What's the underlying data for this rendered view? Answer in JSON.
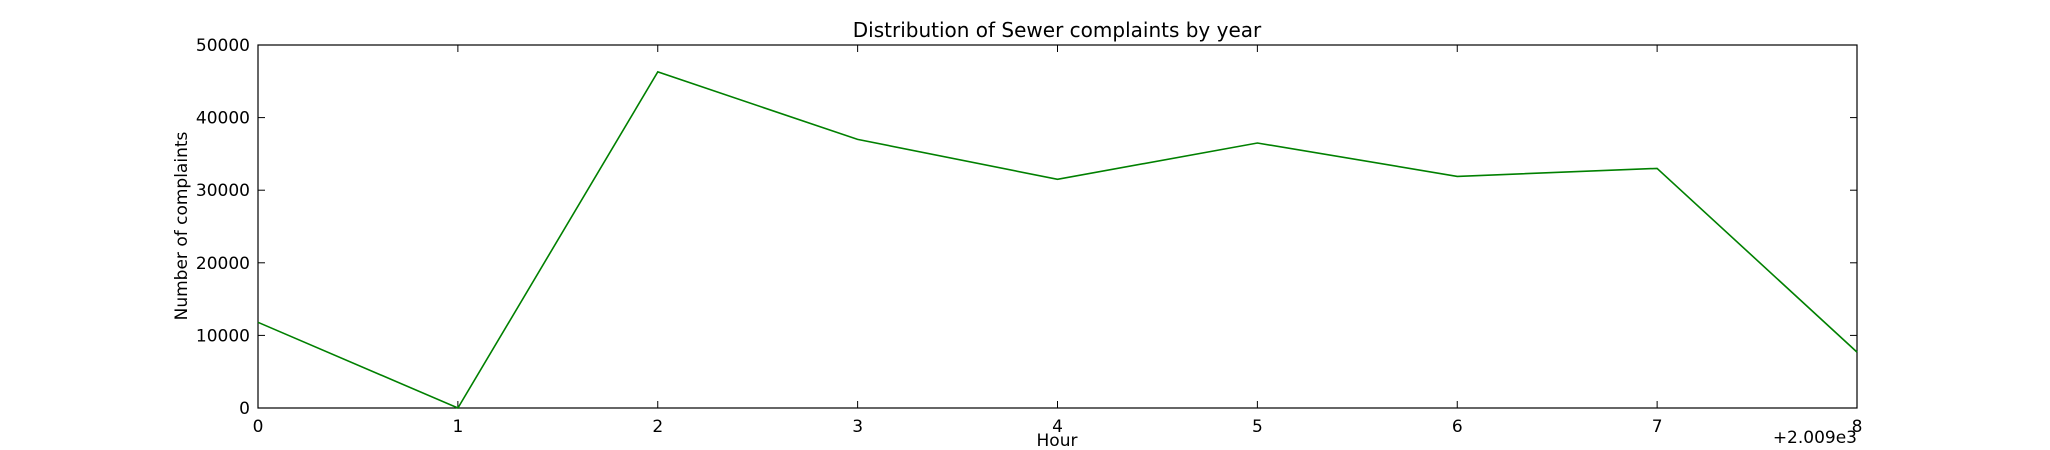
{
  "chart_data": {
    "type": "line",
    "title": "Distribution of  Sewer complaints by year",
    "xlabel": "Hour",
    "ylabel": "Number of complaints",
    "x_offset_label": "+2.009e3",
    "x": [
      0,
      1,
      2,
      3,
      4,
      5,
      6,
      7,
      8
    ],
    "xlim": [
      0,
      8
    ],
    "ylim": [
      0,
      50000
    ],
    "xticks": [
      "0",
      "1",
      "2",
      "3",
      "4",
      "5",
      "6",
      "7",
      "8"
    ],
    "yticks": [
      "0",
      "10000",
      "20000",
      "30000",
      "40000",
      "50000"
    ],
    "grid": false,
    "series": [
      {
        "color": "#008000",
        "values": [
          11800,
          0,
          46300,
          37000,
          31500,
          36500,
          31900,
          33000,
          7700
        ]
      }
    ]
  }
}
